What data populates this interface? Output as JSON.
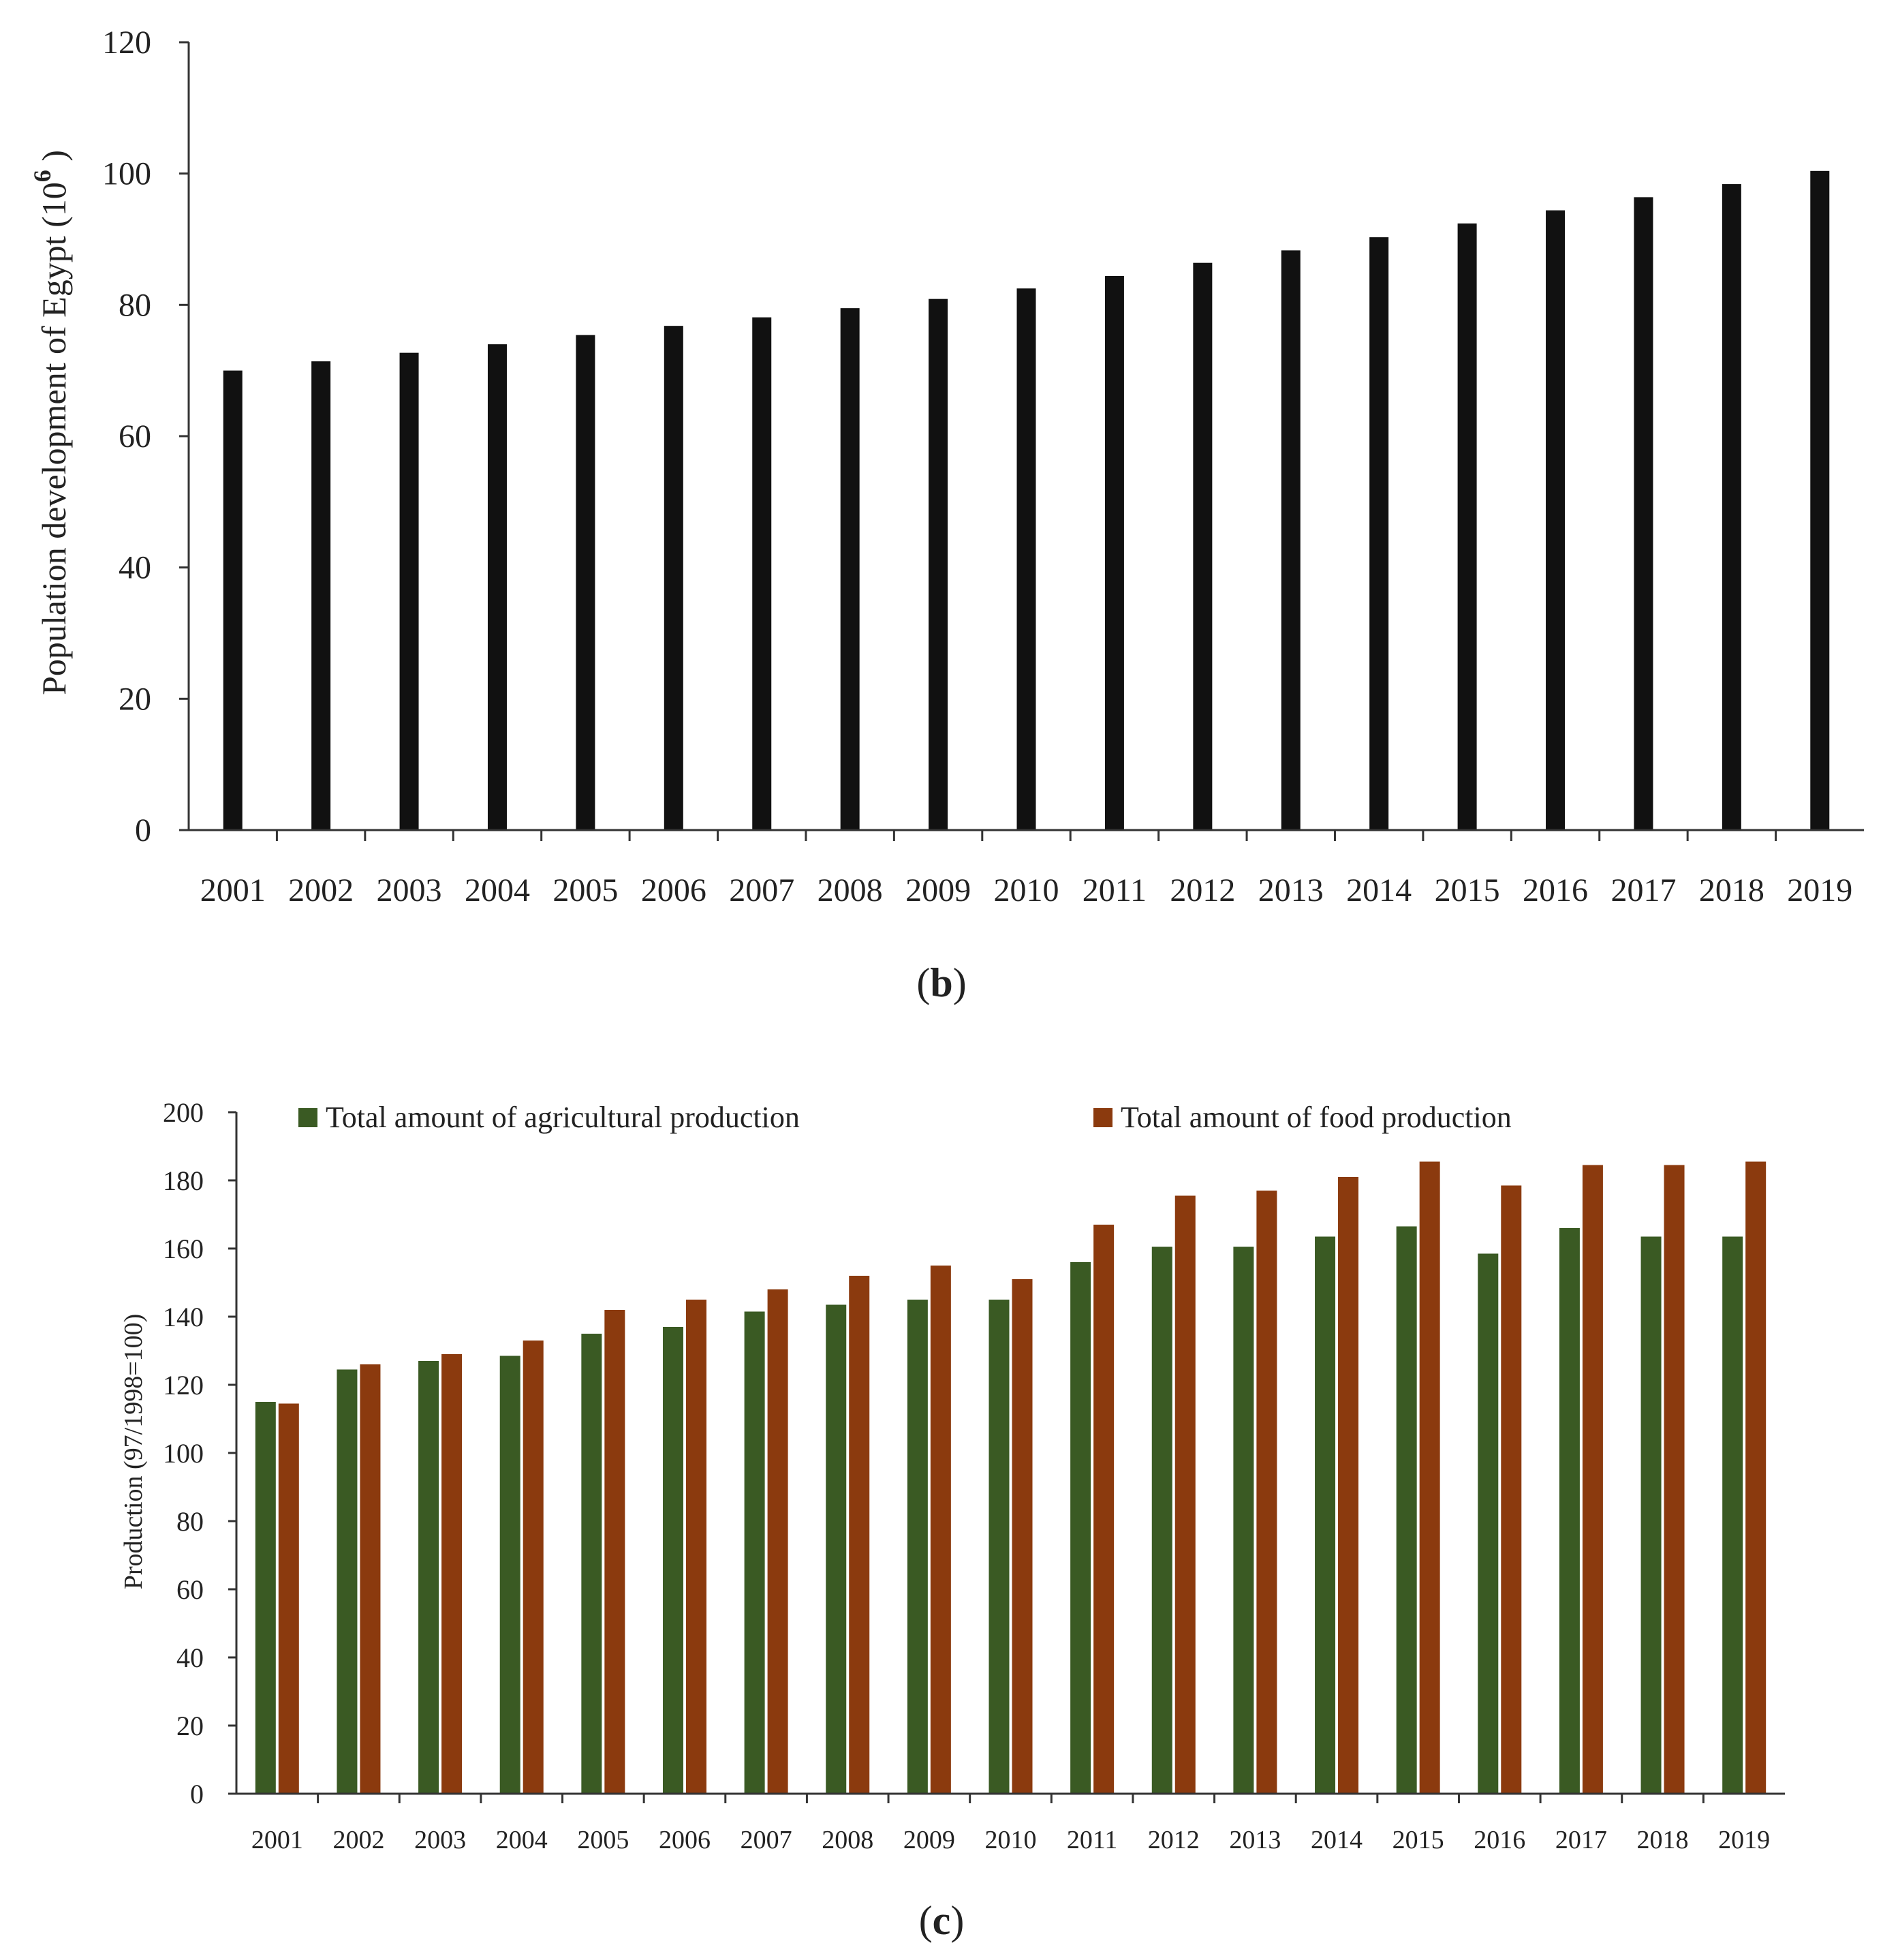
{
  "chart_data": [
    {
      "type": "bar",
      "panel_label": "b",
      "title": "",
      "xlabel": "",
      "ylabel": "Population development of Egypt (10",
      "ylabel_superscript": "6",
      "ylabel_suffix": " )",
      "ylim": [
        0,
        120
      ],
      "yticks": [
        0,
        20,
        40,
        60,
        80,
        100,
        120
      ],
      "categories": [
        "2001",
        "2002",
        "2003",
        "2004",
        "2005",
        "2006",
        "2007",
        "2008",
        "2009",
        "2010",
        "2011",
        "2012",
        "2013",
        "2014",
        "2015",
        "2016",
        "2017",
        "2018",
        "2019"
      ],
      "series": [
        {
          "name": "Population",
          "color": "#111111",
          "values": [
            70,
            71.4,
            72.7,
            74.0,
            75.4,
            76.8,
            78.1,
            79.5,
            80.9,
            82.5,
            84.4,
            86.4,
            88.3,
            90.3,
            92.4,
            94.4,
            96.4,
            98.4,
            100.4
          ]
        }
      ],
      "grid": false
    },
    {
      "type": "bar",
      "panel_label": "c",
      "title": "",
      "xlabel": "",
      "ylabel": "Production (97/1998=100)",
      "ylim": [
        0,
        200
      ],
      "yticks": [
        0,
        20,
        40,
        60,
        80,
        100,
        120,
        140,
        160,
        180,
        200
      ],
      "legend_position": "top",
      "categories": [
        "2001",
        "2002",
        "2003",
        "2004",
        "2005",
        "2006",
        "2007",
        "2008",
        "2009",
        "2010",
        "2011",
        "2012",
        "2013",
        "2014",
        "2015",
        "2016",
        "2017",
        "2018",
        "2019"
      ],
      "series": [
        {
          "name": "Total amount of agricultural production",
          "color": "#3a5a23",
          "values": [
            115,
            124.5,
            127,
            128.5,
            135,
            137,
            141.5,
            143.5,
            145,
            145,
            156,
            160.5,
            160.5,
            163.5,
            166.5,
            158.5,
            166,
            163.5,
            163.5
          ]
        },
        {
          "name": "Total amount of food production",
          "color": "#8b3a0e",
          "values": [
            114.5,
            126,
            129,
            133,
            142,
            145,
            148,
            152,
            155,
            151,
            167,
            175.5,
            177,
            181,
            185.5,
            178.5,
            184.5,
            184.5,
            185.5
          ]
        }
      ],
      "grid": false
    }
  ]
}
